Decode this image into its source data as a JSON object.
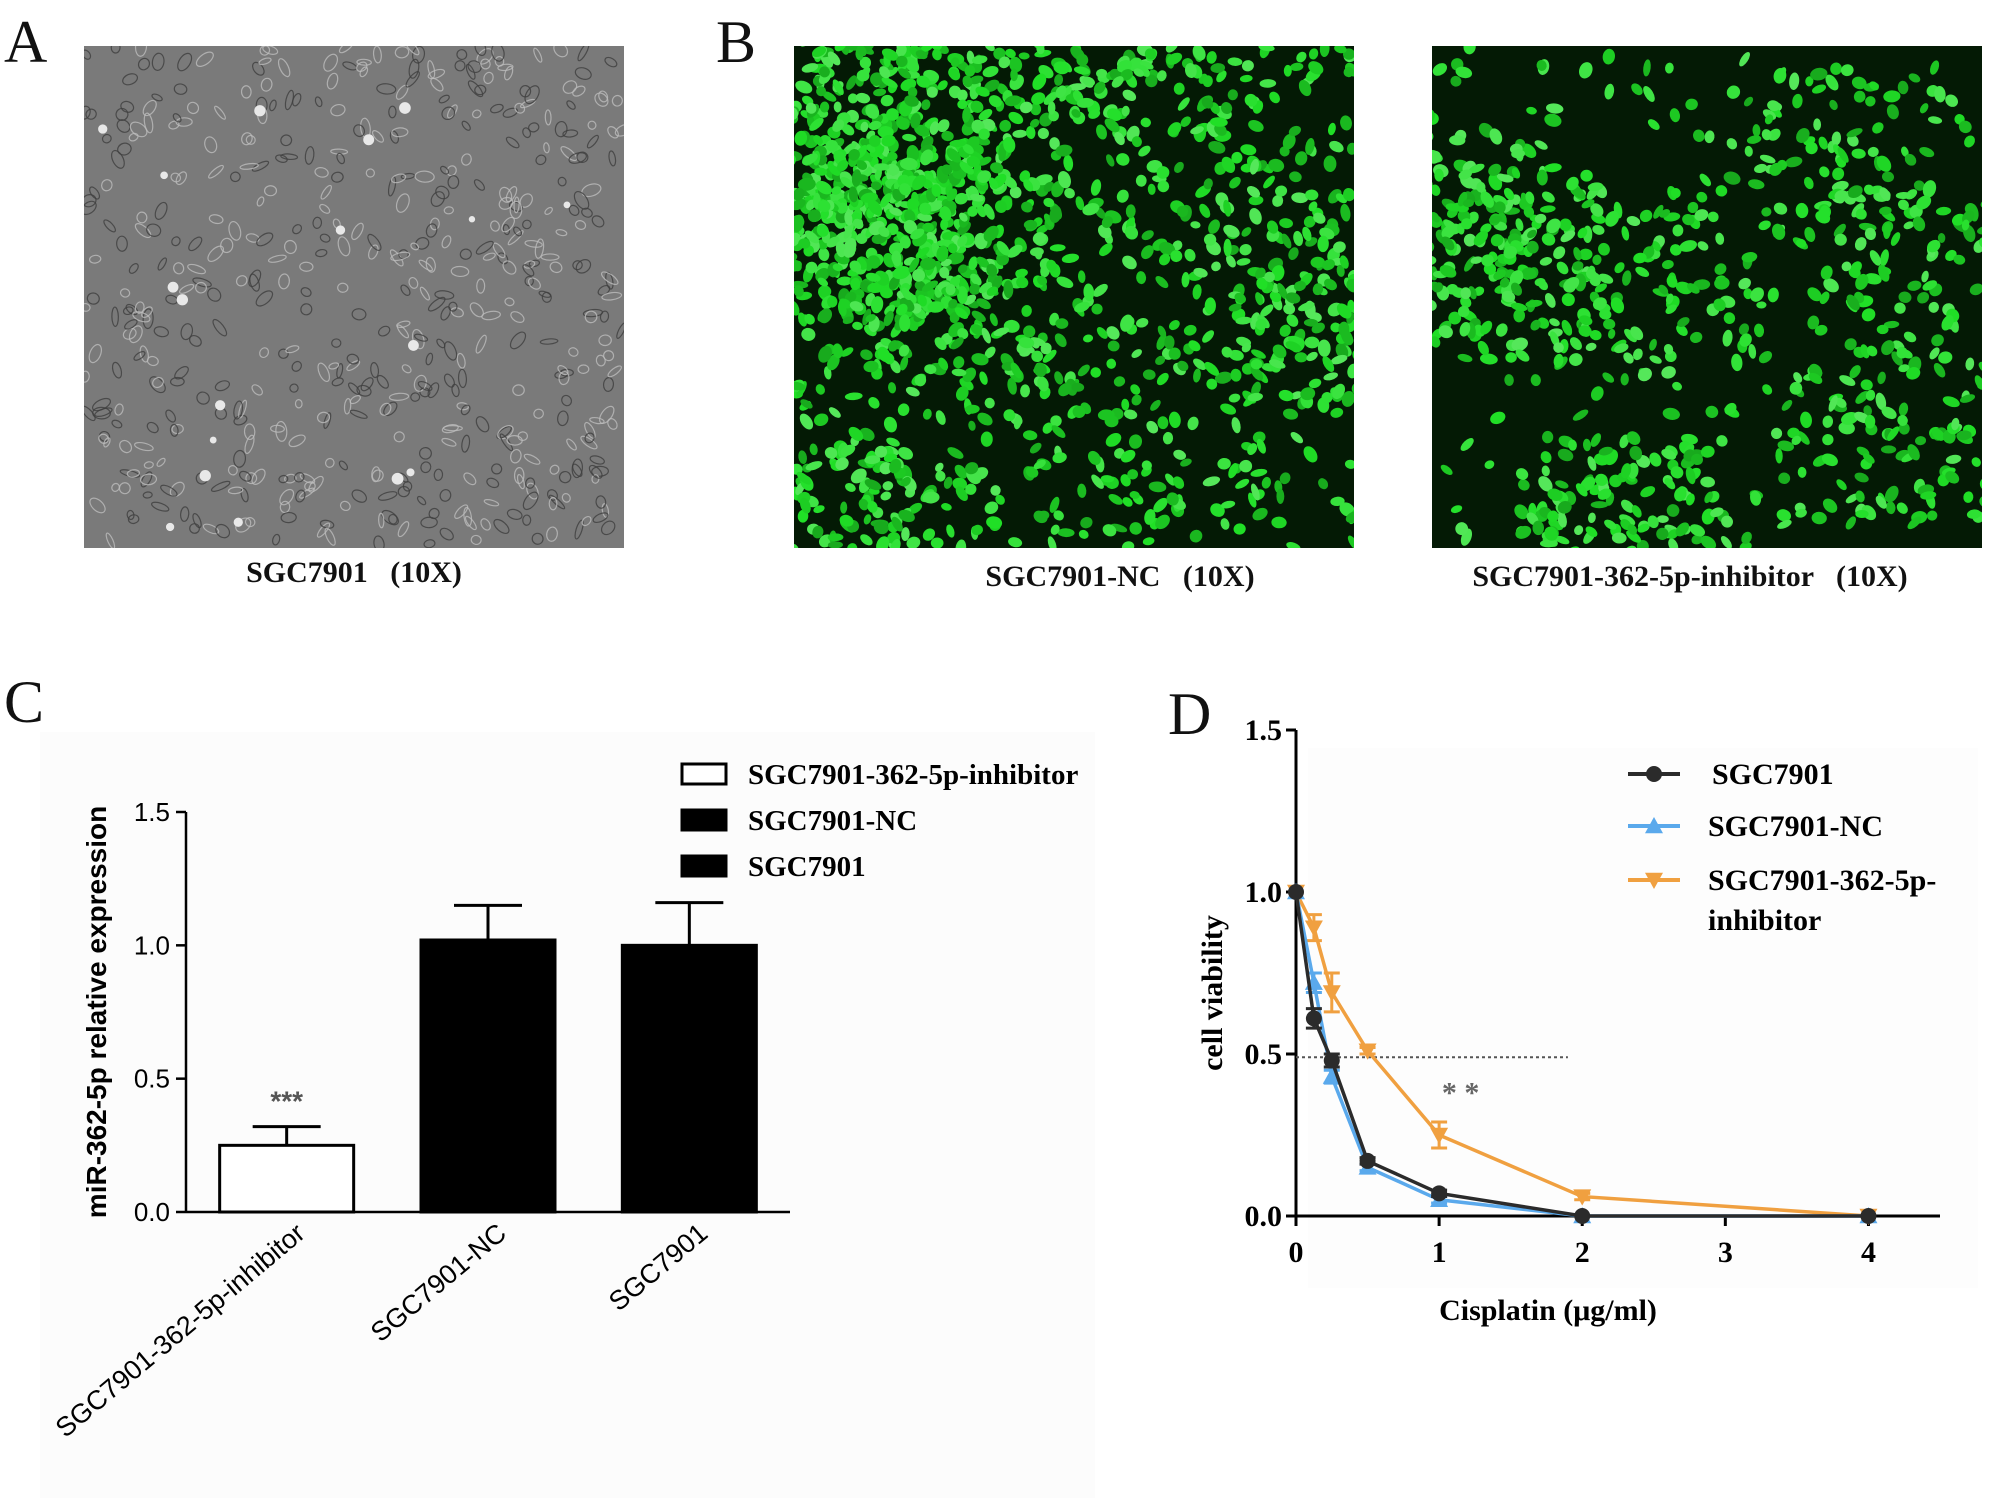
{
  "panels": {
    "A": {
      "letter": "A",
      "caption": "SGC7901   (10X)"
    },
    "B": {
      "letter": "B",
      "captions": [
        "SGC7901-NC   (10X)",
        "SGC7901-362-5p-inhibitor   (10X)"
      ]
    },
    "C": {
      "letter": "C"
    },
    "D": {
      "letter": "D"
    }
  },
  "colors": {
    "brightfield_bg": "#7a7a7a",
    "fluorescence_cell": "#1fc42a",
    "fluorescence_bg": "#041a05",
    "bar_fill_control": "#000000",
    "bar_fill_inhibitor": "#ffffff",
    "series_sgc7901": "#2b2b2b",
    "series_nc": "#5aa9ec",
    "series_inhibitor": "#f0a040"
  },
  "chart_data": [
    {
      "type": "bar",
      "ylabel": "miR-362-5p relative expression",
      "xlabel": "",
      "ylim": [
        0,
        1.5
      ],
      "yticks": [
        "0.0",
        "0.5",
        "1.0",
        "1.5"
      ],
      "categories": [
        "SGC7901-362-5p-inhibitor",
        "SGC7901-NC",
        "SGC7901"
      ],
      "values": [
        0.25,
        1.02,
        1.0
      ],
      "errors": [
        0.07,
        0.13,
        0.16
      ],
      "fills": [
        "white",
        "black",
        "black"
      ],
      "annotation": "***",
      "legend": [
        "SGC7901-362-5p-inhibitor",
        "SGC7901-NC",
        "SGC7901"
      ],
      "legend_position": "top-right"
    },
    {
      "type": "line",
      "xlabel": "Cisplatin (μg/ml)",
      "ylabel": "cell viability",
      "xlim": [
        0,
        4.5
      ],
      "ylim": [
        0,
        1.5
      ],
      "xticks": [
        "0",
        "1",
        "2",
        "3",
        "4"
      ],
      "yticks": [
        "0.0",
        "0.5",
        "1.0",
        "1.5"
      ],
      "reference_line_y": 0.49,
      "annotation": "* *",
      "series": [
        {
          "name": "SGC7901",
          "marker": "circle",
          "x": [
            0,
            0.125,
            0.25,
            0.5,
            1,
            2,
            4
          ],
          "y": [
            1.0,
            0.61,
            0.48,
            0.17,
            0.07,
            0.0,
            0.0
          ],
          "err": [
            0,
            0.03,
            0.02,
            0.01,
            0.01,
            0,
            0
          ]
        },
        {
          "name": "SGC7901-NC",
          "marker": "triangle-up",
          "x": [
            0,
            0.125,
            0.25,
            0.5,
            1,
            2,
            4
          ],
          "y": [
            1.0,
            0.72,
            0.43,
            0.15,
            0.05,
            0.0,
            0.0
          ],
          "err": [
            0,
            0.03,
            0.02,
            0.01,
            0.01,
            0,
            0
          ]
        },
        {
          "name": "SGC7901-362-5p-inhibitor",
          "marker": "triangle-down",
          "x": [
            0,
            0.125,
            0.25,
            0.5,
            1,
            2,
            4
          ],
          "y": [
            1.0,
            0.89,
            0.69,
            0.51,
            0.25,
            0.06,
            0.0
          ],
          "err": [
            0,
            0.04,
            0.06,
            0.01,
            0.04,
            0.01,
            0
          ]
        }
      ],
      "legend": [
        "SGC7901",
        "SGC7901-NC",
        "SGC7901-362-5p-",
        "inhibitor"
      ],
      "legend_position": "top-right"
    }
  ]
}
